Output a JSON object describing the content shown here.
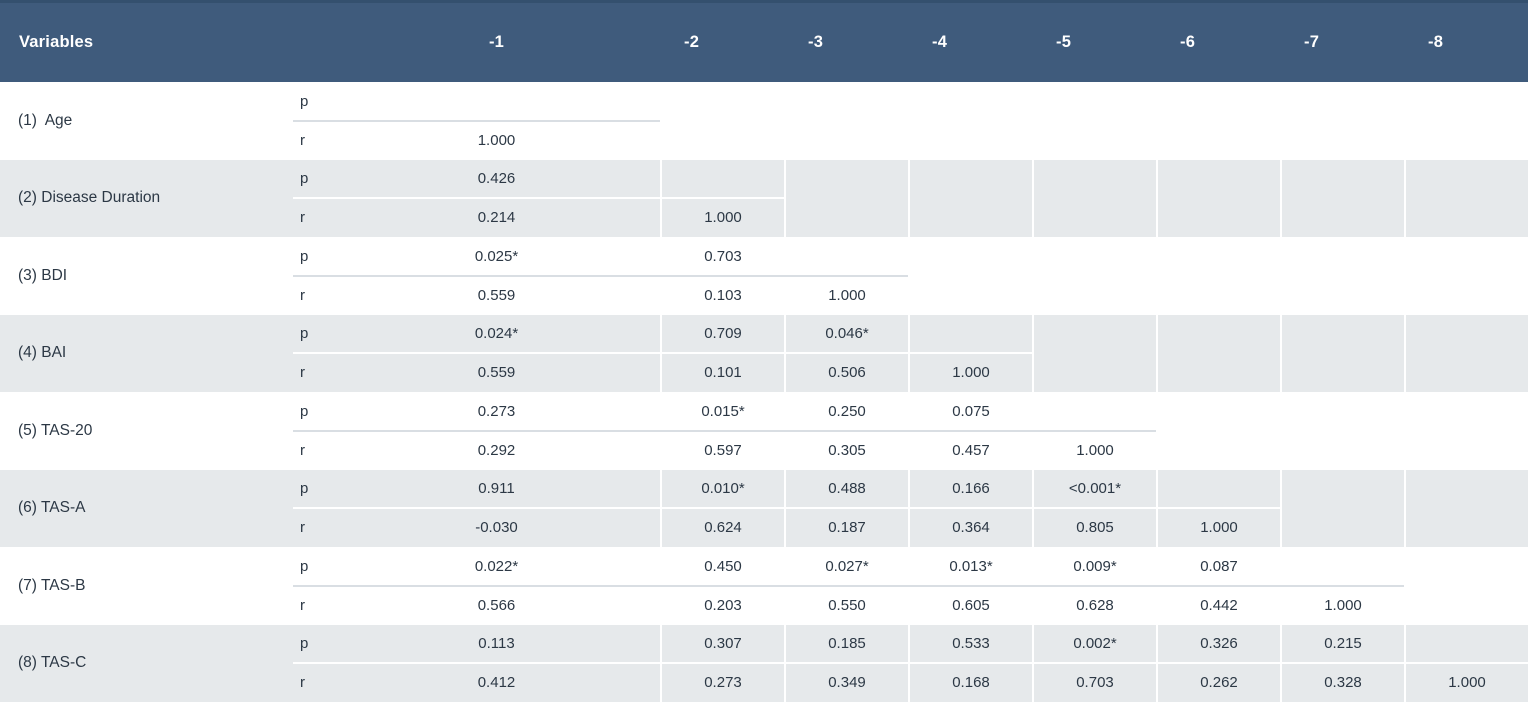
{
  "table": {
    "variables_label": "Variables",
    "columns": [
      "-1",
      "-2",
      "-3",
      "-4",
      "-5",
      "-6",
      "-7",
      "-8"
    ],
    "sub_row_labels": {
      "p": "p",
      "r": "r"
    },
    "rows": [
      {
        "label": "(1)  Age",
        "p": [
          "",
          "",
          "",
          "",
          "",
          "",
          "",
          ""
        ],
        "r": [
          "1.000",
          "",
          "",
          "",
          "",
          "",
          "",
          ""
        ]
      },
      {
        "label": "(2) Disease Duration",
        "p": [
          "0.426",
          "",
          "",
          "",
          "",
          "",
          "",
          ""
        ],
        "r": [
          "0.214",
          "1.000",
          "",
          "",
          "",
          "",
          "",
          ""
        ]
      },
      {
        "label": "(3) BDI",
        "p": [
          "0.025*",
          "0.703",
          "",
          "",
          "",
          "",
          "",
          ""
        ],
        "r": [
          "0.559",
          "0.103",
          "1.000",
          "",
          "",
          "",
          "",
          ""
        ]
      },
      {
        "label": "(4) BAI",
        "p": [
          "0.024*",
          "0.709",
          "0.046*",
          "",
          "",
          "",
          "",
          ""
        ],
        "r": [
          "0.559",
          "0.101",
          "0.506",
          "1.000",
          "",
          "",
          "",
          ""
        ]
      },
      {
        "label": "(5) TAS-20",
        "p": [
          "0.273",
          "0.015*",
          "0.250",
          "0.075",
          "",
          "",
          "",
          ""
        ],
        "r": [
          "0.292",
          "0.597",
          "0.305",
          "0.457",
          "1.000",
          "",
          "",
          ""
        ]
      },
      {
        "label": "(6) TAS-A",
        "p": [
          "0.911",
          "0.010*",
          "0.488",
          "0.166",
          "<0.001*",
          "",
          "",
          ""
        ],
        "r": [
          "-0.030",
          "0.624",
          "0.187",
          "0.364",
          "0.805",
          "1.000",
          "",
          ""
        ]
      },
      {
        "label": "(7) TAS-B",
        "p": [
          "0.022*",
          "0.450",
          "0.027*",
          "0.013*",
          "0.009*",
          "0.087",
          "",
          ""
        ],
        "r": [
          "0.566",
          "0.203",
          "0.550",
          "0.605",
          "0.628",
          "0.442",
          "1.000",
          ""
        ]
      },
      {
        "label": "(8) TAS-C",
        "p": [
          "0.113",
          "0.307",
          "0.185",
          "0.533",
          "0.002*",
          "0.326",
          "0.215",
          ""
        ],
        "r": [
          "0.412",
          "0.273",
          "0.349",
          "0.168",
          "0.703",
          "0.262",
          "0.328",
          "1.000"
        ]
      }
    ]
  },
  "colors": {
    "header_bg": "#3f5b7c",
    "header_top_edge": "#34506e",
    "header_text": "#ffffff",
    "band_gray": "#e6e9eb",
    "band_white": "#ffffff",
    "body_text": "#2c3845",
    "divider_on_white": "#d9dee3",
    "divider_on_gray": "#ffffff"
  }
}
